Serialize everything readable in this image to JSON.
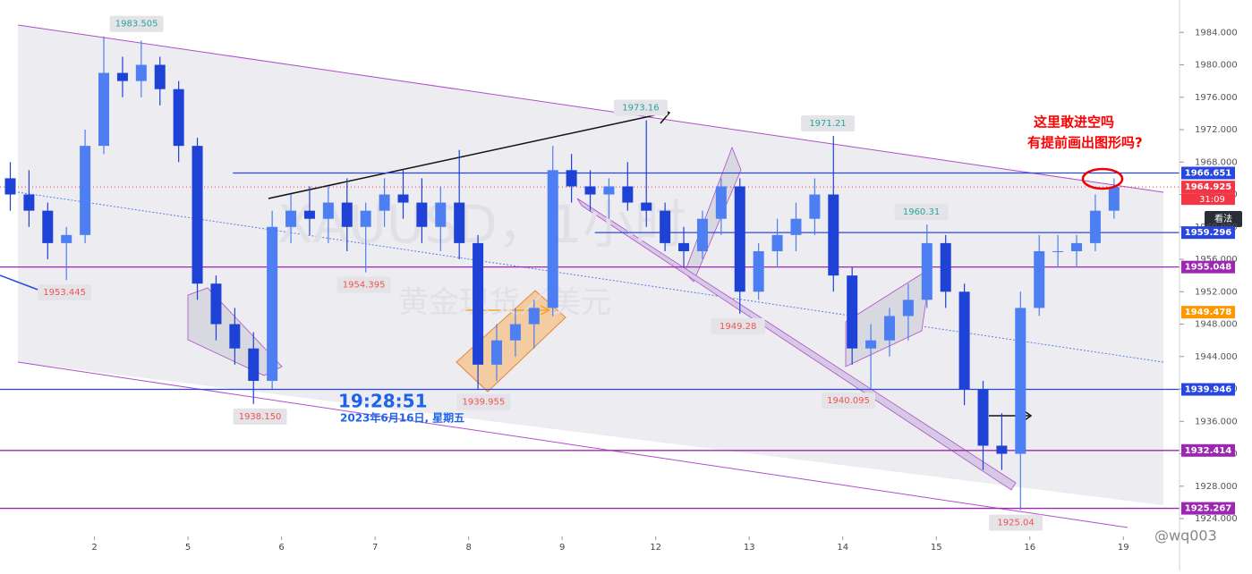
{
  "chart_data": {
    "type": "candlestick",
    "up_color": "#4d7ef2",
    "down_color": "#1f42d6",
    "watermark": "XAUUSD，1小时",
    "watermark_sub": "黄金现货／美元",
    "time": "19:28:51",
    "date": "2023年6月16日, 星期五",
    "note_line1": "这里敢进空吗",
    "note_line2": "有提前画出图形吗?",
    "button": "看法",
    "author": "@wq003",
    "countdown": "31:09",
    "xlim": [
      -0.01,
      12.6
    ],
    "ylim": [
      1921.8,
      1988
    ],
    "xticks": [
      {
        "value": 1,
        "label": "2"
      },
      {
        "value": 2,
        "label": "5"
      },
      {
        "value": 3,
        "label": "6"
      },
      {
        "value": 4,
        "label": "7"
      },
      {
        "value": 5,
        "label": "8"
      },
      {
        "value": 6,
        "label": "9"
      },
      {
        "value": 7,
        "label": "12"
      },
      {
        "value": 8,
        "label": "13"
      },
      {
        "value": 9,
        "label": "14"
      },
      {
        "value": 10,
        "label": "15"
      },
      {
        "value": 11,
        "label": "16"
      },
      {
        "value": 12,
        "label": "19"
      }
    ],
    "yticks": [
      {
        "value": 1924,
        "label": "1924.000"
      },
      {
        "value": 1928,
        "label": "1928.000"
      },
      {
        "value": 1932,
        "label": "1932.000"
      },
      {
        "value": 1936,
        "label": "1936.000"
      },
      {
        "value": 1940,
        "label": "1940.000"
      },
      {
        "value": 1944,
        "label": "1944.000"
      },
      {
        "value": 1948,
        "label": "1948.000"
      },
      {
        "value": 1952,
        "label": "1952.000"
      },
      {
        "value": 1956,
        "label": "1956.000"
      },
      {
        "value": 1960,
        "label": "1960.000"
      },
      {
        "value": 1964,
        "label": "1964.000"
      },
      {
        "value": 1968,
        "label": "1968.000"
      },
      {
        "value": 1972,
        "label": "1972.000"
      },
      {
        "value": 1976,
        "label": "1976.000"
      },
      {
        "value": 1980,
        "label": "1980.000"
      },
      {
        "value": 1984,
        "label": "1984.000"
      }
    ],
    "candles": {
      "x": [
        0.1,
        0.3,
        0.5,
        0.7,
        0.9,
        1.1,
        1.3,
        1.5,
        1.7,
        1.9,
        2.1,
        2.3,
        2.5,
        2.7,
        2.9,
        3.1,
        3.3,
        3.5,
        3.7,
        3.9,
        4.1,
        4.3,
        4.5,
        4.7,
        4.9,
        5.1,
        5.3,
        5.5,
        5.7,
        5.9,
        6.1,
        6.3,
        6.5,
        6.7,
        6.9,
        7.1,
        7.3,
        7.5,
        7.7,
        7.9,
        8.1,
        8.3,
        8.5,
        8.7,
        8.9,
        9.1,
        9.3,
        9.5,
        9.7,
        9.9,
        10.1,
        10.3,
        10.5,
        10.7,
        10.9,
        11.1,
        11.3,
        11.5,
        11.7,
        11.9
      ],
      "open": [
        1966,
        1964,
        1962,
        1958,
        1959,
        1970,
        1979,
        1978,
        1980,
        1977,
        1970,
        1953,
        1948,
        1945,
        1941,
        1960,
        1962,
        1961,
        1963,
        1960,
        1962,
        1964,
        1963,
        1960,
        1963,
        1958,
        1943,
        1946,
        1948,
        1950,
        1967,
        1965,
        1964,
        1965,
        1963,
        1962,
        1958,
        1957,
        1961,
        1965,
        1952,
        1957,
        1959,
        1961,
        1964,
        1954,
        1945,
        1946,
        1949,
        1951,
        1958,
        1952,
        1940,
        1933,
        1932,
        1950,
        1957,
        1957,
        1958,
        1962
      ],
      "high": [
        1968,
        1967,
        1963,
        1960,
        1972,
        1983.505,
        1981,
        1983,
        1981,
        1978,
        1971,
        1954,
        1950,
        1947,
        1962,
        1964,
        1965,
        1965,
        1966,
        1963,
        1966,
        1967,
        1966,
        1965,
        1969.5,
        1959,
        1948,
        1950,
        1951,
        1970,
        1969,
        1967,
        1966,
        1968,
        1973.16,
        1963,
        1960,
        1962,
        1966,
        1966,
        1958,
        1961,
        1963,
        1966,
        1971.21,
        1955,
        1948,
        1950,
        1953,
        1960.31,
        1959,
        1953,
        1941,
        1937,
        1952,
        1959,
        1959,
        1959,
        1964,
        1966
      ],
      "low": [
        1962,
        1960,
        1956,
        1953.445,
        1958,
        1969,
        1976,
        1976,
        1975,
        1968,
        1951,
        1946,
        1943,
        1938.15,
        1940,
        1958,
        1959,
        1958,
        1957,
        1954.395,
        1960,
        1961,
        1958,
        1957,
        1956,
        1939.955,
        1941,
        1944,
        1945,
        1949,
        1963,
        1962,
        1961,
        1962,
        1960,
        1957,
        1955,
        1956,
        1959,
        1949.28,
        1951,
        1955,
        1957,
        1959,
        1952,
        1943,
        1940.095,
        1944,
        1946,
        1950,
        1950,
        1938,
        1930,
        1930,
        1925.04,
        1949,
        1955,
        1955,
        1957,
        1961
      ],
      "close": [
        1964,
        1962,
        1958,
        1959,
        1970,
        1979,
        1978,
        1980,
        1977,
        1970,
        1953,
        1948,
        1945,
        1941,
        1960,
        1962,
        1961,
        1963,
        1960,
        1962,
        1964,
        1963,
        1960,
        1963,
        1958,
        1943,
        1946,
        1948,
        1950,
        1967,
        1965,
        1964,
        1965,
        1963,
        1962,
        1958,
        1957,
        1961,
        1965,
        1952,
        1957,
        1959,
        1961,
        1964,
        1954,
        1945,
        1946,
        1949,
        1951,
        1958,
        1952,
        1940,
        1933,
        1932,
        1950,
        1957,
        1957,
        1958,
        1962,
        1964.925
      ]
    },
    "point_labels": [
      {
        "x": 1.45,
        "value": 1983.505,
        "position": "above"
      },
      {
        "x": 0.68,
        "value": 1953.445,
        "position": "below"
      },
      {
        "x": 2.77,
        "value": 1938.15,
        "label": "1938.150",
        "position": "below"
      },
      {
        "x": 3.88,
        "value": 1954.395,
        "position": "below"
      },
      {
        "x": 5.16,
        "value": 1939.955,
        "position": "below"
      },
      {
        "x": 6.84,
        "value": 1973.16,
        "position": "above"
      },
      {
        "x": 7.88,
        "value": 1949.28,
        "position": "below"
      },
      {
        "x": 8.84,
        "value": 1971.21,
        "position": "above"
      },
      {
        "x": 9.06,
        "value": 1940.095,
        "position": "below"
      },
      {
        "x": 9.84,
        "value": 1960.31,
        "position": "above"
      },
      {
        "x": 10.85,
        "value": 1925.04,
        "position": "below"
      }
    ],
    "levels": [
      {
        "value": 1966.651,
        "color": "#2947e0",
        "start": 2.48
      },
      {
        "value": 1959.296,
        "color": "#2947e0",
        "start": 6.35
      },
      {
        "value": 1955.048,
        "color": "#9c27b0",
        "start": -0.01
      },
      {
        "value": 1939.946,
        "color": "#2947e0",
        "start": -0.01
      },
      {
        "value": 1932.414,
        "color": "#9c27b0",
        "start": -0.01
      },
      {
        "value": 1925.267,
        "color": "#9c27b0",
        "start": -0.01
      }
    ],
    "current_price": {
      "value": 1964.925,
      "color": "#f23645"
    },
    "marker_price": {
      "value": 1949.478,
      "color": "#ff9800"
    }
  }
}
